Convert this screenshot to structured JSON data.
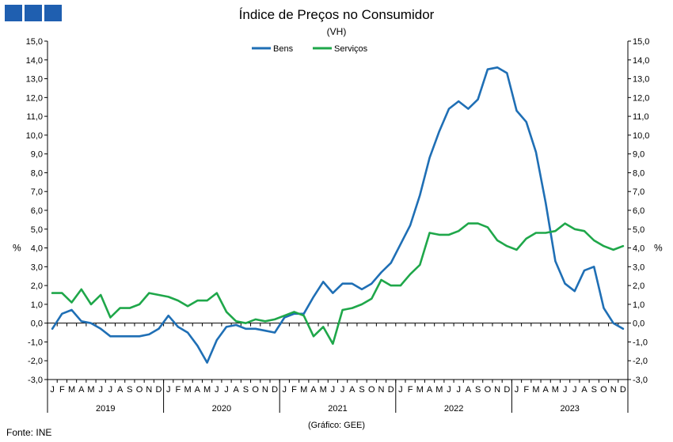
{
  "header": {
    "logo": "INE",
    "title": "Índice de Preços no Consumidor",
    "subtitle": "(VH)"
  },
  "footer": {
    "source": "Fonte: INE",
    "credit": "(Gráfico: GEE)"
  },
  "chart_data": {
    "type": "line",
    "title": "Índice de Preços no Consumidor",
    "subtitle": "(VH)",
    "ylabel": "%",
    "ylim": [
      -3,
      15
    ],
    "yticks": [
      "-3,0",
      "-2,0",
      "-1,0",
      "0,0",
      "1,0",
      "2,0",
      "3,0",
      "4,0",
      "5,0",
      "6,0",
      "7,0",
      "8,0",
      "9,0",
      "10,0",
      "11,0",
      "12,0",
      "13,0",
      "14,0",
      "15,0"
    ],
    "month_labels": [
      "J",
      "F",
      "M",
      "A",
      "M",
      "J",
      "J",
      "A",
      "S",
      "O",
      "N",
      "D"
    ],
    "years": [
      "2019",
      "2020",
      "2021",
      "2022",
      "2023"
    ],
    "legend_position": "top-center",
    "series": [
      {
        "name": "Bens",
        "color": "#1f6fb5",
        "values": [
          -0.3,
          0.5,
          0.7,
          0.1,
          0.0,
          -0.3,
          -0.7,
          -0.7,
          -0.7,
          -0.7,
          -0.6,
          -0.3,
          0.4,
          -0.2,
          -0.5,
          -1.2,
          -2.1,
          -0.9,
          -0.2,
          -0.1,
          -0.3,
          -0.3,
          -0.4,
          -0.5,
          0.3,
          0.5,
          0.5,
          1.4,
          2.2,
          1.6,
          2.1,
          2.1,
          1.8,
          2.1,
          2.7,
          3.2,
          4.2,
          5.2,
          6.8,
          8.8,
          10.2,
          11.4,
          11.8,
          11.4,
          11.9,
          13.5,
          13.6,
          13.3,
          11.3,
          10.7,
          9.1,
          6.4,
          3.3,
          2.1,
          1.7,
          2.8,
          3.0,
          0.8,
          0.0,
          -0.3
        ]
      },
      {
        "name": "Serviços",
        "color": "#1fa74a",
        "values": [
          1.6,
          1.6,
          1.1,
          1.8,
          1.0,
          1.5,
          0.3,
          0.8,
          0.8,
          1.0,
          1.6,
          1.5,
          1.4,
          1.2,
          0.9,
          1.2,
          1.2,
          1.6,
          0.6,
          0.1,
          0.0,
          0.2,
          0.1,
          0.2,
          0.4,
          0.6,
          0.4,
          -0.7,
          -0.2,
          -1.1,
          0.7,
          0.8,
          1.0,
          1.3,
          2.3,
          2.0,
          2.0,
          2.6,
          3.1,
          4.8,
          4.7,
          4.7,
          4.9,
          5.3,
          5.3,
          5.1,
          4.4,
          4.1,
          3.9,
          4.5,
          4.8,
          4.8,
          4.9,
          5.3,
          5.0,
          4.9,
          4.4,
          4.1,
          3.9,
          4.1
        ]
      }
    ]
  }
}
